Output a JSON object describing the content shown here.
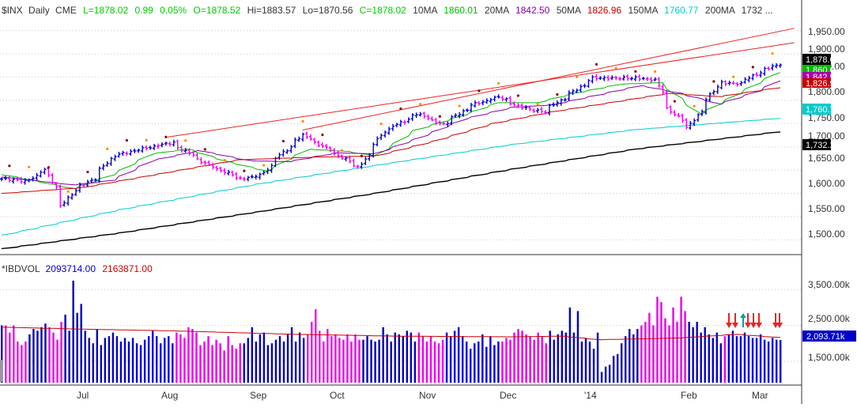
{
  "price_header": {
    "symbol": "$INX",
    "period": "Daily",
    "exchange": "CME",
    "last": "L=1878.02",
    "change": "0.99",
    "change_pct": "0.05%",
    "open": "O=1878.52",
    "high": "Hi=1883.57",
    "low": "Lo=1870.56",
    "close": "C=1878.02",
    "ma10_label": "10MA",
    "ma10_value": "1860.01",
    "ma20_label": "20MA",
    "ma20_value": "1842.50",
    "ma50_label": "50MA",
    "ma50_value": "1826.96",
    "ma150_label": "150MA",
    "ma150_value": "1760.77",
    "ma200_label": "200MA",
    "ma200_value": "1732 ..."
  },
  "volume_header": {
    "label": "*IBDVOL",
    "value": "2093714.00",
    "avg_value": "2163871.00"
  },
  "x_axis_months": [
    "Jul",
    "Aug",
    "Sep",
    "Oct",
    "Nov",
    "Dec",
    "'14",
    "Feb",
    "Mar"
  ],
  "price_ticks": [
    "1,950.00",
    "1,900.00",
    "1,850.00",
    "1,800.00",
    "1,750.00",
    "1,700.00",
    "1,650.00",
    "1,600.00",
    "1,550.00",
    "1,500.00"
  ],
  "volume_ticks": [
    "3,500.00k",
    "2,500.00k",
    "1,500.00k"
  ],
  "price_badges": [
    {
      "text": "1,878.02",
      "bg": "#000000",
      "fg": "#ffffff"
    },
    {
      "text": "1,860.01",
      "bg": "#00bb00",
      "fg": "#ffffff"
    },
    {
      "text": "1,842.50",
      "bg": "#aa00aa",
      "fg": "#ffffff"
    },
    {
      "text": "1,826.96",
      "bg": "#cc0000",
      "fg": "#ffffff"
    },
    {
      "text": "1,760.77",
      "bg": "#00cccc",
      "fg": "#ffffff"
    },
    {
      "text": "1,732.28",
      "bg": "#000000",
      "fg": "#ffffff"
    }
  ],
  "volume_badge": {
    "text": "2,093.71k",
    "bg": "#0000cc",
    "fg": "#ffffff"
  },
  "colors": {
    "up": "#0000cc",
    "down": "#ee00ee",
    "ma10": "#00bb00",
    "ma20": "#8800aa",
    "ma50": "#cc0000",
    "ma150": "#00cccc",
    "ma200": "#000000",
    "trend": "#ee2222",
    "vol_avg": "#cc0000",
    "grid": "#c8c8c8",
    "text": "#333333",
    "pos": "#00cc00",
    "neg": "#cc0000"
  },
  "chart_data": [
    {
      "type": "line",
      "title": "$INX Daily",
      "ylim": [
        1480,
        1970
      ],
      "ohlc_anchors": [
        [
          "2013-06-03",
          1631
        ],
        [
          "2013-06-11",
          1626
        ],
        [
          "2013-06-18",
          1651
        ],
        [
          "2013-06-24",
          1573
        ],
        [
          "2013-06-28",
          1606
        ],
        [
          "2013-07-05",
          1631
        ],
        [
          "2013-07-12",
          1680
        ],
        [
          "2013-07-22",
          1695
        ],
        [
          "2013-08-02",
          1709
        ],
        [
          "2013-08-15",
          1661
        ],
        [
          "2013-08-27",
          1631
        ],
        [
          "2013-09-03",
          1639
        ],
        [
          "2013-09-10",
          1683
        ],
        [
          "2013-09-18",
          1725
        ],
        [
          "2013-09-26",
          1698
        ],
        [
          "2013-10-08",
          1656
        ],
        [
          "2013-10-17",
          1733
        ],
        [
          "2013-10-29",
          1771
        ],
        [
          "2013-11-07",
          1748
        ],
        [
          "2013-11-18",
          1791
        ],
        [
          "2013-11-27",
          1807
        ],
        [
          "2013-12-05",
          1785
        ],
        [
          "2013-12-13",
          1775
        ],
        [
          "2013-12-31",
          1848
        ],
        [
          "2014-01-15",
          1848
        ],
        [
          "2014-01-22",
          1844
        ],
        [
          "2014-01-27",
          1782
        ],
        [
          "2014-02-03",
          1741
        ],
        [
          "2014-02-14",
          1838
        ],
        [
          "2014-02-21",
          1836
        ],
        [
          "2014-02-28",
          1859
        ],
        [
          "2014-03-07",
          1878
        ]
      ],
      "moving_averages": [
        {
          "name": "10MA",
          "anchors": [
            [
              "2013-06-03",
              1640
            ],
            [
              "2013-06-28",
              1610
            ],
            [
              "2013-07-12",
              1640
            ],
            [
              "2013-07-26",
              1685
            ],
            [
              "2013-08-08",
              1695
            ],
            [
              "2013-08-22",
              1668
            ],
            [
              "2013-09-05",
              1648
            ],
            [
              "2013-09-20",
              1695
            ],
            [
              "2013-10-04",
              1690
            ],
            [
              "2013-10-14",
              1680
            ],
            [
              "2013-10-28",
              1735
            ],
            [
              "2013-11-13",
              1765
            ],
            [
              "2013-11-27",
              1795
            ],
            [
              "2013-12-11",
              1795
            ],
            [
              "2013-12-24",
              1815
            ],
            [
              "2014-01-10",
              1835
            ],
            [
              "2014-01-24",
              1838
            ],
            [
              "2014-02-07",
              1770
            ],
            [
              "2014-02-21",
              1815
            ],
            [
              "2014-03-07",
              1860
            ]
          ]
        },
        {
          "name": "20MA",
          "anchors": [
            [
              "2013-06-03",
              1635
            ],
            [
              "2013-06-28",
              1618
            ],
            [
              "2013-07-12",
              1628
            ],
            [
              "2013-07-26",
              1670
            ],
            [
              "2013-08-12",
              1692
            ],
            [
              "2013-08-30",
              1670
            ],
            [
              "2013-09-13",
              1668
            ],
            [
              "2013-09-30",
              1687
            ],
            [
              "2013-10-14",
              1685
            ],
            [
              "2013-10-30",
              1720
            ],
            [
              "2013-11-15",
              1760
            ],
            [
              "2013-12-02",
              1785
            ],
            [
              "2013-12-16",
              1790
            ],
            [
              "2014-01-02",
              1812
            ],
            [
              "2014-01-17",
              1832
            ],
            [
              "2014-01-31",
              1815
            ],
            [
              "2014-02-14",
              1792
            ],
            [
              "2014-02-28",
              1820
            ],
            [
              "2014-03-07",
              1842
            ]
          ]
        },
        {
          "name": "50MA",
          "anchors": [
            [
              "2013-06-03",
              1600
            ],
            [
              "2013-07-01",
              1612
            ],
            [
              "2013-07-29",
              1642
            ],
            [
              "2013-08-26",
              1672
            ],
            [
              "2013-09-23",
              1678
            ],
            [
              "2013-10-14",
              1680
            ],
            [
              "2013-11-04",
              1712
            ],
            [
              "2013-11-25",
              1750
            ],
            [
              "2013-12-16",
              1775
            ],
            [
              "2014-01-06",
              1795
            ],
            [
              "2014-01-27",
              1815
            ],
            [
              "2014-02-14",
              1808
            ],
            [
              "2014-03-07",
              1827
            ]
          ]
        },
        {
          "name": "150MA",
          "anchors": [
            [
              "2013-06-03",
              1510
            ],
            [
              "2013-07-15",
              1565
            ],
            [
              "2013-09-02",
              1620
            ],
            [
              "2013-10-14",
              1660
            ],
            [
              "2013-12-02",
              1705
            ],
            [
              "2014-01-15",
              1737
            ],
            [
              "2014-03-07",
              1761
            ]
          ]
        },
        {
          "name": "200MA",
          "anchors": [
            [
              "2013-06-03",
              1481
            ],
            [
              "2013-07-15",
              1515
            ],
            [
              "2013-09-02",
              1560
            ],
            [
              "2013-10-14",
              1600
            ],
            [
              "2013-12-02",
              1652
            ],
            [
              "2014-01-15",
              1695
            ],
            [
              "2014-03-07",
              1732
            ]
          ]
        }
      ],
      "trendlines": [
        {
          "start": [
            "2013-08-01",
            1721
          ],
          "end": [
            "2014-03-12",
            1924
          ]
        },
        {
          "start": [
            "2013-09-18",
            1736
          ],
          "end": [
            "2014-03-12",
            1955
          ]
        }
      ]
    },
    {
      "type": "bar",
      "title": "*IBDVOL",
      "ylim": [
        900000,
        4300000
      ],
      "values": [
        2500000,
        2500000,
        2300000,
        2500000,
        2050000,
        1950000,
        2050000,
        2250000,
        2400000,
        2350000,
        2450000,
        2550000,
        2450000,
        2300000,
        2100000,
        2600000,
        2800000,
        2350000,
        3750000,
        2850000,
        3100000,
        2350000,
        2150000,
        2000000,
        2400000,
        1950000,
        2150000,
        2200000,
        2300000,
        2200000,
        2050000,
        2150000,
        2050000,
        2150000,
        2000000,
        1950000,
        2100000,
        2200000,
        2350000,
        2200000,
        2000000,
        2150000,
        2200000,
        2000000,
        2300000,
        2250000,
        2150000,
        2450000,
        2400000,
        2300000,
        1950000,
        2050000,
        2200000,
        1950000,
        2100000,
        2000000,
        1800000,
        2200000,
        1950000,
        1850000,
        2000000,
        2000000,
        2150000,
        2450000,
        2050000,
        2250000,
        2300000,
        1950000,
        2000000,
        2100000,
        2200000,
        2050000,
        2250000,
        2450000,
        2050000,
        2300000,
        2150000,
        2250000,
        2600000,
        2950000,
        2350000,
        2050000,
        2400000,
        2200000,
        2250000,
        2150000,
        2100000,
        2250000,
        2050000,
        2250000,
        2100000,
        2100000,
        2200000,
        2100000,
        2050000,
        2100000,
        2450000,
        2250000,
        2050000,
        2300000,
        2250000,
        2200000,
        2350000,
        2300000,
        2050000,
        2300000,
        2200000,
        2050000,
        2200000,
        2050000,
        2000000,
        2100000,
        2300000,
        2200000,
        2350000,
        2450000,
        2200000,
        2050000,
        1850000,
        2000000,
        2050000,
        2250000,
        1900000,
        2200000,
        1950000,
        2050000,
        2050000,
        2150000,
        2100000,
        2300000,
        2400000,
        2350000,
        2250000,
        2200000,
        2100000,
        2300000,
        2200000,
        2000000,
        2350000,
        2100000,
        2250000,
        2350000,
        2300000,
        3000000,
        2300000,
        2900000,
        2050000,
        2150000,
        2050000,
        1850000,
        2300000,
        1200000,
        1350000,
        1400000,
        1650000,
        1700000,
        2000000,
        2200000,
        2400000,
        2250000,
        2400000,
        2500000,
        2600000,
        2850000,
        2500000,
        3300000,
        3150000,
        2700000,
        2500000,
        3000000,
        2600000,
        3300000,
        2900000,
        2600000,
        2450000,
        2600000,
        2300000,
        2450000,
        2250000,
        2150000,
        2300000,
        2000000,
        2200000,
        2250000,
        2350000,
        2200000,
        2200000,
        2300000,
        2200000,
        2150000,
        2150000,
        2250000,
        2100000,
        2050000,
        2150000,
        2100000,
        2093714
      ],
      "avg_anchors": [
        [
          "2013-06-03",
          2450000
        ],
        [
          "2013-06-28",
          2400000
        ],
        [
          "2013-08-01",
          2350000
        ],
        [
          "2013-09-16",
          2250000
        ],
        [
          "2013-10-21",
          2200000
        ],
        [
          "2013-12-02",
          2180000
        ],
        [
          "2013-12-20",
          2200000
        ],
        [
          "2014-01-02",
          2100000
        ],
        [
          "2014-01-31",
          2150000
        ],
        [
          "2014-02-20",
          2250000
        ],
        [
          "2014-03-07",
          2163871
        ]
      ]
    }
  ]
}
